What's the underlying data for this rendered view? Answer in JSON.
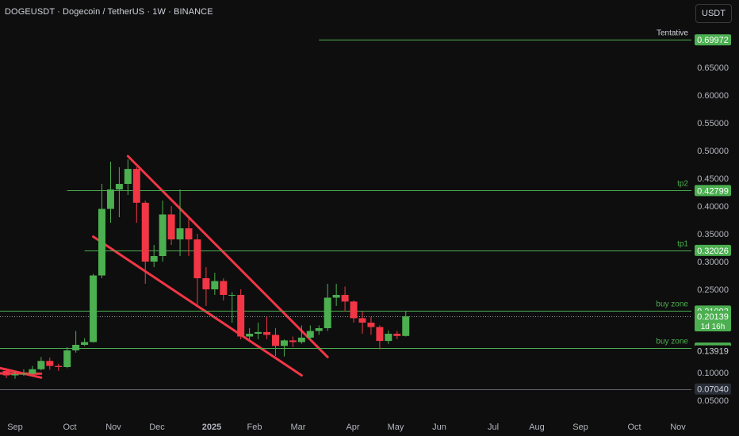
{
  "header": {
    "title": "DOGEUSDT · Dogecoin / TetherUS · 1W · BINANCE",
    "currency_button": "USDT"
  },
  "colors": {
    "up": "#4caf50",
    "down": "#f23645",
    "level_line": "#4caf50",
    "trendline": "#f23645",
    "axis_text": "#b2b5be",
    "background": "#0e0e0e"
  },
  "chart_data": {
    "type": "candlestick",
    "symbol": "DOGEUSDT",
    "interval": "1W",
    "x_labels": [
      "Sep",
      "Oct",
      "Nov",
      "Dec",
      "2025",
      "Feb",
      "Mar",
      "Apr",
      "May",
      "Jun",
      "Jul",
      "Aug",
      "Sep",
      "Oct",
      "Nov"
    ],
    "y_ticks": [
      "0.65000",
      "0.60000",
      "0.55000",
      "0.50000",
      "0.45000",
      "0.40000",
      "0.35000",
      "0.30000",
      "0.25000",
      "0.10000",
      "0.05000"
    ],
    "ylim": [
      0.045,
      0.73
    ],
    "candles": [
      {
        "w": "2024-08-26",
        "o": 0.103,
        "h": 0.108,
        "l": 0.09,
        "c": 0.095
      },
      {
        "w": "2024-09-02",
        "o": 0.095,
        "h": 0.102,
        "l": 0.089,
        "c": 0.097
      },
      {
        "w": "2024-09-09",
        "o": 0.097,
        "h": 0.106,
        "l": 0.094,
        "c": 0.098
      },
      {
        "w": "2024-09-16",
        "o": 0.098,
        "h": 0.112,
        "l": 0.097,
        "c": 0.106
      },
      {
        "w": "2024-09-23",
        "o": 0.106,
        "h": 0.128,
        "l": 0.104,
        "c": 0.121
      },
      {
        "w": "2024-09-30",
        "o": 0.121,
        "h": 0.127,
        "l": 0.105,
        "c": 0.112
      },
      {
        "w": "2024-10-07",
        "o": 0.112,
        "h": 0.116,
        "l": 0.103,
        "c": 0.11
      },
      {
        "w": "2024-10-14",
        "o": 0.11,
        "h": 0.146,
        "l": 0.108,
        "c": 0.14
      },
      {
        "w": "2024-10-21",
        "o": 0.14,
        "h": 0.175,
        "l": 0.136,
        "c": 0.15
      },
      {
        "w": "2024-10-28",
        "o": 0.15,
        "h": 0.162,
        "l": 0.148,
        "c": 0.155
      },
      {
        "w": "2024-11-04",
        "o": 0.155,
        "h": 0.278,
        "l": 0.154,
        "c": 0.275
      },
      {
        "w": "2024-11-11",
        "o": 0.275,
        "h": 0.44,
        "l": 0.27,
        "c": 0.395
      },
      {
        "w": "2024-11-18",
        "o": 0.395,
        "h": 0.48,
        "l": 0.37,
        "c": 0.43
      },
      {
        "w": "2024-11-25",
        "o": 0.43,
        "h": 0.47,
        "l": 0.38,
        "c": 0.44
      },
      {
        "w": "2024-12-02",
        "o": 0.44,
        "h": 0.484,
        "l": 0.42,
        "c": 0.467
      },
      {
        "w": "2024-12-09",
        "o": 0.467,
        "h": 0.47,
        "l": 0.37,
        "c": 0.406
      },
      {
        "w": "2024-12-16",
        "o": 0.406,
        "h": 0.41,
        "l": 0.26,
        "c": 0.3
      },
      {
        "w": "2024-12-23",
        "o": 0.3,
        "h": 0.33,
        "l": 0.29,
        "c": 0.31
      },
      {
        "w": "2024-12-30",
        "o": 0.31,
        "h": 0.41,
        "l": 0.3,
        "c": 0.385
      },
      {
        "w": "2025-01-06",
        "o": 0.385,
        "h": 0.4,
        "l": 0.33,
        "c": 0.34
      },
      {
        "w": "2025-01-13",
        "o": 0.34,
        "h": 0.43,
        "l": 0.31,
        "c": 0.36
      },
      {
        "w": "2025-01-20",
        "o": 0.36,
        "h": 0.38,
        "l": 0.31,
        "c": 0.34
      },
      {
        "w": "2025-01-27",
        "o": 0.34,
        "h": 0.35,
        "l": 0.22,
        "c": 0.27
      },
      {
        "w": "2025-02-03",
        "o": 0.27,
        "h": 0.29,
        "l": 0.22,
        "c": 0.25
      },
      {
        "w": "2025-02-10",
        "o": 0.25,
        "h": 0.28,
        "l": 0.24,
        "c": 0.265
      },
      {
        "w": "2025-02-17",
        "o": 0.265,
        "h": 0.27,
        "l": 0.23,
        "c": 0.24
      },
      {
        "w": "2025-02-24",
        "o": 0.24,
        "h": 0.245,
        "l": 0.19,
        "c": 0.24
      },
      {
        "w": "2025-03-03",
        "o": 0.24,
        "h": 0.25,
        "l": 0.16,
        "c": 0.165
      },
      {
        "w": "2025-03-10",
        "o": 0.165,
        "h": 0.18,
        "l": 0.16,
        "c": 0.17
      },
      {
        "w": "2025-03-17",
        "o": 0.17,
        "h": 0.19,
        "l": 0.16,
        "c": 0.173
      },
      {
        "w": "2025-03-24",
        "o": 0.173,
        "h": 0.2,
        "l": 0.16,
        "c": 0.168
      },
      {
        "w": "2025-03-31",
        "o": 0.168,
        "h": 0.18,
        "l": 0.13,
        "c": 0.148
      },
      {
        "w": "2025-04-07",
        "o": 0.148,
        "h": 0.16,
        "l": 0.129,
        "c": 0.158
      },
      {
        "w": "2025-04-14",
        "o": 0.158,
        "h": 0.165,
        "l": 0.146,
        "c": 0.155
      },
      {
        "w": "2025-04-21",
        "o": 0.155,
        "h": 0.185,
        "l": 0.152,
        "c": 0.163
      },
      {
        "w": "2025-04-28",
        "o": 0.163,
        "h": 0.185,
        "l": 0.16,
        "c": 0.175
      },
      {
        "w": "2025-05-05",
        "o": 0.175,
        "h": 0.185,
        "l": 0.168,
        "c": 0.18
      },
      {
        "w": "2025-05-12",
        "o": 0.18,
        "h": 0.26,
        "l": 0.175,
        "c": 0.235
      },
      {
        "w": "2025-05-19",
        "o": 0.235,
        "h": 0.26,
        "l": 0.22,
        "c": 0.24
      },
      {
        "w": "2025-05-26",
        "o": 0.24,
        "h": 0.255,
        "l": 0.21,
        "c": 0.228
      },
      {
        "w": "2025-06-02",
        "o": 0.228,
        "h": 0.23,
        "l": 0.19,
        "c": 0.198
      },
      {
        "w": "2025-06-09",
        "o": 0.198,
        "h": 0.21,
        "l": 0.17,
        "c": 0.19
      },
      {
        "w": "2025-06-16",
        "o": 0.19,
        "h": 0.2,
        "l": 0.168,
        "c": 0.182
      },
      {
        "w": "2025-06-23",
        "o": 0.182,
        "h": 0.185,
        "l": 0.142,
        "c": 0.157
      },
      {
        "w": "2025-06-30",
        "o": 0.157,
        "h": 0.176,
        "l": 0.152,
        "c": 0.17
      },
      {
        "w": "2025-07-07",
        "o": 0.17,
        "h": 0.175,
        "l": 0.16,
        "c": 0.166
      },
      {
        "w": "2025-07-14",
        "o": 0.166,
        "h": 0.21,
        "l": 0.165,
        "c": 0.2014
      }
    ],
    "levels": [
      {
        "label": "Tentative",
        "price": "0.69972",
        "value": 0.69972,
        "start": "2025-05-05"
      },
      {
        "label": "tp2",
        "price": "0.42799",
        "value": 0.42799,
        "start": "2024-10-14"
      },
      {
        "label": "tp1",
        "price": "0.32026",
        "value": 0.32026,
        "start": "2024-10-28"
      },
      {
        "label": "buy zone",
        "price": "0.21093",
        "value": 0.21093,
        "start": "2024-07-29"
      },
      {
        "label": "buy zone",
        "price": "0.14402",
        "value": 0.14402,
        "start": "2024-07-29"
      },
      {
        "label": "",
        "price": "0.07040",
        "value": 0.0704,
        "start": "2024-07-29"
      }
    ],
    "current_price": {
      "price": "0.20139",
      "value": 0.20139,
      "countdown": "1d 16h"
    },
    "price_marker": {
      "price": "0.13919",
      "value": 0.13919
    },
    "trendlines": [
      {
        "x1": "2024-12-02",
        "y1": 0.49,
        "x2": "2025-05-12",
        "y2": 0.128
      },
      {
        "x1": "2024-11-04",
        "y1": 0.345,
        "x2": "2025-04-21",
        "y2": 0.095
      },
      {
        "x1": "2024-07-29",
        "y1": 0.12,
        "x2": "2024-09-23",
        "y2": 0.091
      },
      {
        "x1": "2024-07-29",
        "y1": 0.099,
        "x2": "2024-09-23",
        "y2": 0.098
      }
    ]
  }
}
